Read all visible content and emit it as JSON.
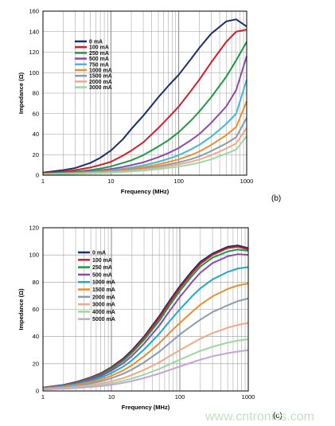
{
  "chart_data": [
    {
      "type": "line",
      "panel_label": "(b)",
      "xlabel": "Frequency (MHz)",
      "ylabel": "Impedance (Ω)",
      "xscale": "log",
      "xlim": [
        1,
        1000
      ],
      "ylim": [
        0,
        160
      ],
      "xticks": [
        "1",
        "10",
        "100",
        "1000"
      ],
      "yticks": [
        "0",
        "20",
        "40",
        "60",
        "80",
        "100",
        "120",
        "140",
        "160"
      ],
      "grid": true,
      "legend_position": "top-left",
      "series": [
        {
          "name": "0 mA",
          "color": "#1c2f6b",
          "x": [
            1,
            2,
            3,
            5,
            7,
            10,
            15,
            20,
            30,
            50,
            70,
            100,
            150,
            200,
            300,
            500,
            700,
            1000
          ],
          "y": [
            2.5,
            5,
            7,
            12,
            17,
            24,
            35,
            45,
            58,
            76,
            87,
            98,
            113,
            124,
            138,
            150,
            152,
            145
          ]
        },
        {
          "name": "100 mA",
          "color": "#d0202e",
          "x": [
            1,
            2,
            3,
            5,
            7,
            10,
            15,
            20,
            30,
            50,
            70,
            100,
            150,
            200,
            300,
            500,
            700,
            1000
          ],
          "y": [
            2,
            3.5,
            5,
            7.5,
            10,
            13,
            19,
            24,
            32,
            46,
            56,
            67,
            82,
            93,
            110,
            130,
            140,
            142
          ]
        },
        {
          "name": "250 mA",
          "color": "#1e9a45",
          "x": [
            1,
            2,
            3,
            5,
            7,
            10,
            15,
            20,
            30,
            50,
            70,
            100,
            150,
            200,
            300,
            500,
            700,
            1000
          ],
          "y": [
            1.5,
            2.5,
            3.5,
            5,
            6.5,
            8.5,
            12,
            14.5,
            19.5,
            28,
            34,
            42,
            53,
            62,
            76,
            96,
            112,
            130
          ]
        },
        {
          "name": "500 mA",
          "color": "#8e4aa8",
          "x": [
            1,
            2,
            3,
            5,
            7,
            10,
            15,
            20,
            30,
            50,
            70,
            100,
            150,
            200,
            300,
            500,
            700,
            1000
          ],
          "y": [
            1.3,
            2,
            2.8,
            3.8,
            4.8,
            6,
            8,
            9.8,
            12.5,
            17.5,
            21.5,
            26.5,
            34,
            40,
            51,
            67,
            83,
            116
          ]
        },
        {
          "name": "750 mA",
          "color": "#46b7d7",
          "x": [
            1,
            2,
            3,
            5,
            7,
            10,
            15,
            20,
            30,
            50,
            70,
            100,
            150,
            200,
            300,
            500,
            700,
            1000
          ],
          "y": [
            1.2,
            1.8,
            2.4,
            3.2,
            3.9,
            4.8,
            6.2,
            7.4,
            9.5,
            13,
            16,
            19.5,
            25,
            29.5,
            37.5,
            50,
            60,
            93
          ]
        },
        {
          "name": "1000 mA",
          "color": "#e9902a",
          "x": [
            1,
            2,
            3,
            5,
            7,
            10,
            15,
            20,
            30,
            50,
            70,
            100,
            150,
            200,
            300,
            500,
            700,
            1000
          ],
          "y": [
            1.1,
            1.6,
            2.1,
            2.8,
            3.4,
            4.1,
            5.2,
            6.2,
            7.8,
            10.5,
            12.8,
            15.5,
            19.5,
            23,
            29.5,
            39,
            47,
            72
          ]
        },
        {
          "name": "1500 mA",
          "color": "#8a9bb0",
          "x": [
            1,
            2,
            3,
            5,
            7,
            10,
            15,
            20,
            30,
            50,
            70,
            100,
            150,
            200,
            300,
            500,
            700,
            1000
          ],
          "y": [
            1,
            1.4,
            1.8,
            2.4,
            2.9,
            3.5,
            4.4,
            5.2,
            6.5,
            8.6,
            10.4,
            12.5,
            15.5,
            18.3,
            23.5,
            31,
            37,
            56
          ]
        },
        {
          "name": "2000 mA",
          "color": "#f0a888",
          "x": [
            1,
            2,
            3,
            5,
            7,
            10,
            15,
            20,
            30,
            50,
            70,
            100,
            150,
            200,
            300,
            500,
            700,
            1000
          ],
          "y": [
            0.9,
            1.3,
            1.6,
            2.1,
            2.5,
            3,
            3.8,
            4.4,
            5.5,
            7.3,
            8.8,
            10.5,
            13,
            15.3,
            19.5,
            26,
            31,
            46
          ]
        },
        {
          "name": "3000 mA",
          "color": "#9fd6a2",
          "x": [
            1,
            2,
            3,
            5,
            7,
            10,
            15,
            20,
            30,
            50,
            70,
            100,
            150,
            200,
            300,
            500,
            700,
            1000
          ],
          "y": [
            0.8,
            1.1,
            1.4,
            1.8,
            2.1,
            2.5,
            3.1,
            3.6,
            4.5,
            5.9,
            7,
            8.4,
            10.4,
            12.2,
            15.5,
            21,
            25,
            38
          ]
        }
      ]
    },
    {
      "type": "line",
      "panel_label": "(c)",
      "xlabel": "Frequency (MHz)",
      "ylabel": "Impedance (Ω)",
      "xscale": "log",
      "xlim": [
        1,
        1000
      ],
      "ylim": [
        0,
        120
      ],
      "xticks": [
        "1",
        "10",
        "100",
        "1000"
      ],
      "yticks": [
        "0",
        "20",
        "40",
        "60",
        "80",
        "100",
        "120"
      ],
      "grid": true,
      "legend_position": "top-left",
      "series": [
        {
          "name": "0 mA",
          "color": "#1c2f6b",
          "x": [
            1,
            2,
            3,
            5,
            7,
            10,
            15,
            20,
            30,
            50,
            70,
            100,
            150,
            200,
            300,
            500,
            700,
            1000
          ],
          "y": [
            2.5,
            4.5,
            6.5,
            10,
            13,
            17.5,
            24,
            30,
            40,
            55,
            66,
            77,
            88,
            95,
            101,
            106,
            107,
            105
          ]
        },
        {
          "name": "100 mA",
          "color": "#d0202e",
          "x": [
            1,
            2,
            3,
            5,
            7,
            10,
            15,
            20,
            30,
            50,
            70,
            100,
            150,
            200,
            300,
            500,
            700,
            1000
          ],
          "y": [
            2.4,
            4.3,
            6.2,
            9.6,
            12.5,
            17,
            23.2,
            29,
            39,
            53.5,
            64.5,
            75.5,
            86.5,
            93.5,
            100,
            105,
            106,
            104
          ]
        },
        {
          "name": "250 mA",
          "color": "#1e9a45",
          "x": [
            1,
            2,
            3,
            5,
            7,
            10,
            15,
            20,
            30,
            50,
            70,
            100,
            150,
            200,
            300,
            500,
            700,
            1000
          ],
          "y": [
            2.3,
            4.1,
            5.9,
            9.2,
            12,
            16.3,
            22.3,
            28,
            37.5,
            51.5,
            62.5,
            73.5,
            84.5,
            91.5,
            98,
            102.5,
            104,
            103
          ]
        },
        {
          "name": "500 mA",
          "color": "#8e4aa8",
          "x": [
            1,
            2,
            3,
            5,
            7,
            10,
            15,
            20,
            30,
            50,
            70,
            100,
            150,
            200,
            300,
            500,
            700,
            1000
          ],
          "y": [
            2.2,
            3.9,
            5.5,
            8.5,
            11,
            15,
            20.5,
            25.8,
            34.8,
            48,
            58.5,
            69,
            80,
            87,
            94,
            99,
            100.5,
            100
          ]
        },
        {
          "name": "1000 mA",
          "color": "#23a9c8",
          "x": [
            1,
            2,
            3,
            5,
            7,
            10,
            15,
            20,
            30,
            50,
            70,
            100,
            150,
            200,
            300,
            500,
            700,
            1000
          ],
          "y": [
            2,
            3.5,
            4.9,
            7.5,
            9.7,
            13.2,
            18,
            22.6,
            30.5,
            42,
            51,
            60,
            69.5,
            75.5,
            82,
            87.5,
            90,
            91
          ]
        },
        {
          "name": "1500 mA",
          "color": "#e9902a",
          "x": [
            1,
            2,
            3,
            5,
            7,
            10,
            15,
            20,
            30,
            50,
            70,
            100,
            150,
            200,
            300,
            500,
            700,
            1000
          ],
          "y": [
            1.8,
            3.1,
            4.3,
            6.5,
            8.3,
            11.2,
            15.2,
            19,
            25.5,
            35,
            42.5,
            50,
            58,
            63.5,
            69.5,
            75,
            77.5,
            79
          ]
        },
        {
          "name": "2000 mA",
          "color": "#8a9bb0",
          "x": [
            1,
            2,
            3,
            5,
            7,
            10,
            15,
            20,
            30,
            50,
            70,
            100,
            150,
            200,
            300,
            500,
            700,
            1000
          ],
          "y": [
            1.6,
            2.7,
            3.7,
            5.5,
            7,
            9.4,
            12.7,
            15.8,
            21,
            28.8,
            35,
            41.5,
            48,
            52.5,
            58,
            63,
            66,
            68
          ]
        },
        {
          "name": "3000 mA",
          "color": "#f0a888",
          "x": [
            1,
            2,
            3,
            5,
            7,
            10,
            15,
            20,
            30,
            50,
            70,
            100,
            150,
            200,
            300,
            500,
            700,
            1000
          ],
          "y": [
            1.4,
            2.2,
            3,
            4.3,
            5.4,
            7.1,
            9.5,
            11.8,
            15.5,
            21,
            25.5,
            30,
            35,
            38.5,
            42.5,
            46.5,
            48.5,
            50
          ]
        },
        {
          "name": "4000 mA",
          "color": "#9fd6a2",
          "x": [
            1,
            2,
            3,
            5,
            7,
            10,
            15,
            20,
            30,
            50,
            70,
            100,
            150,
            200,
            300,
            500,
            700,
            1000
          ],
          "y": [
            1.2,
            1.9,
            2.5,
            3.5,
            4.3,
            5.6,
            7.5,
            9.2,
            12,
            16.2,
            19.5,
            23,
            26.8,
            29.5,
            32.5,
            35.5,
            37,
            38
          ]
        },
        {
          "name": "5000 mA",
          "color": "#c8a3d6",
          "x": [
            1,
            2,
            3,
            5,
            7,
            10,
            15,
            20,
            30,
            50,
            70,
            100,
            150,
            200,
            300,
            500,
            700,
            1000
          ],
          "y": [
            1,
            1.6,
            2.1,
            2.9,
            3.5,
            4.5,
            6,
            7.3,
            9.5,
            12.8,
            15.3,
            18,
            21,
            23,
            25.5,
            27.8,
            29,
            30
          ]
        }
      ]
    }
  ],
  "watermark": "www.cntronics.com"
}
